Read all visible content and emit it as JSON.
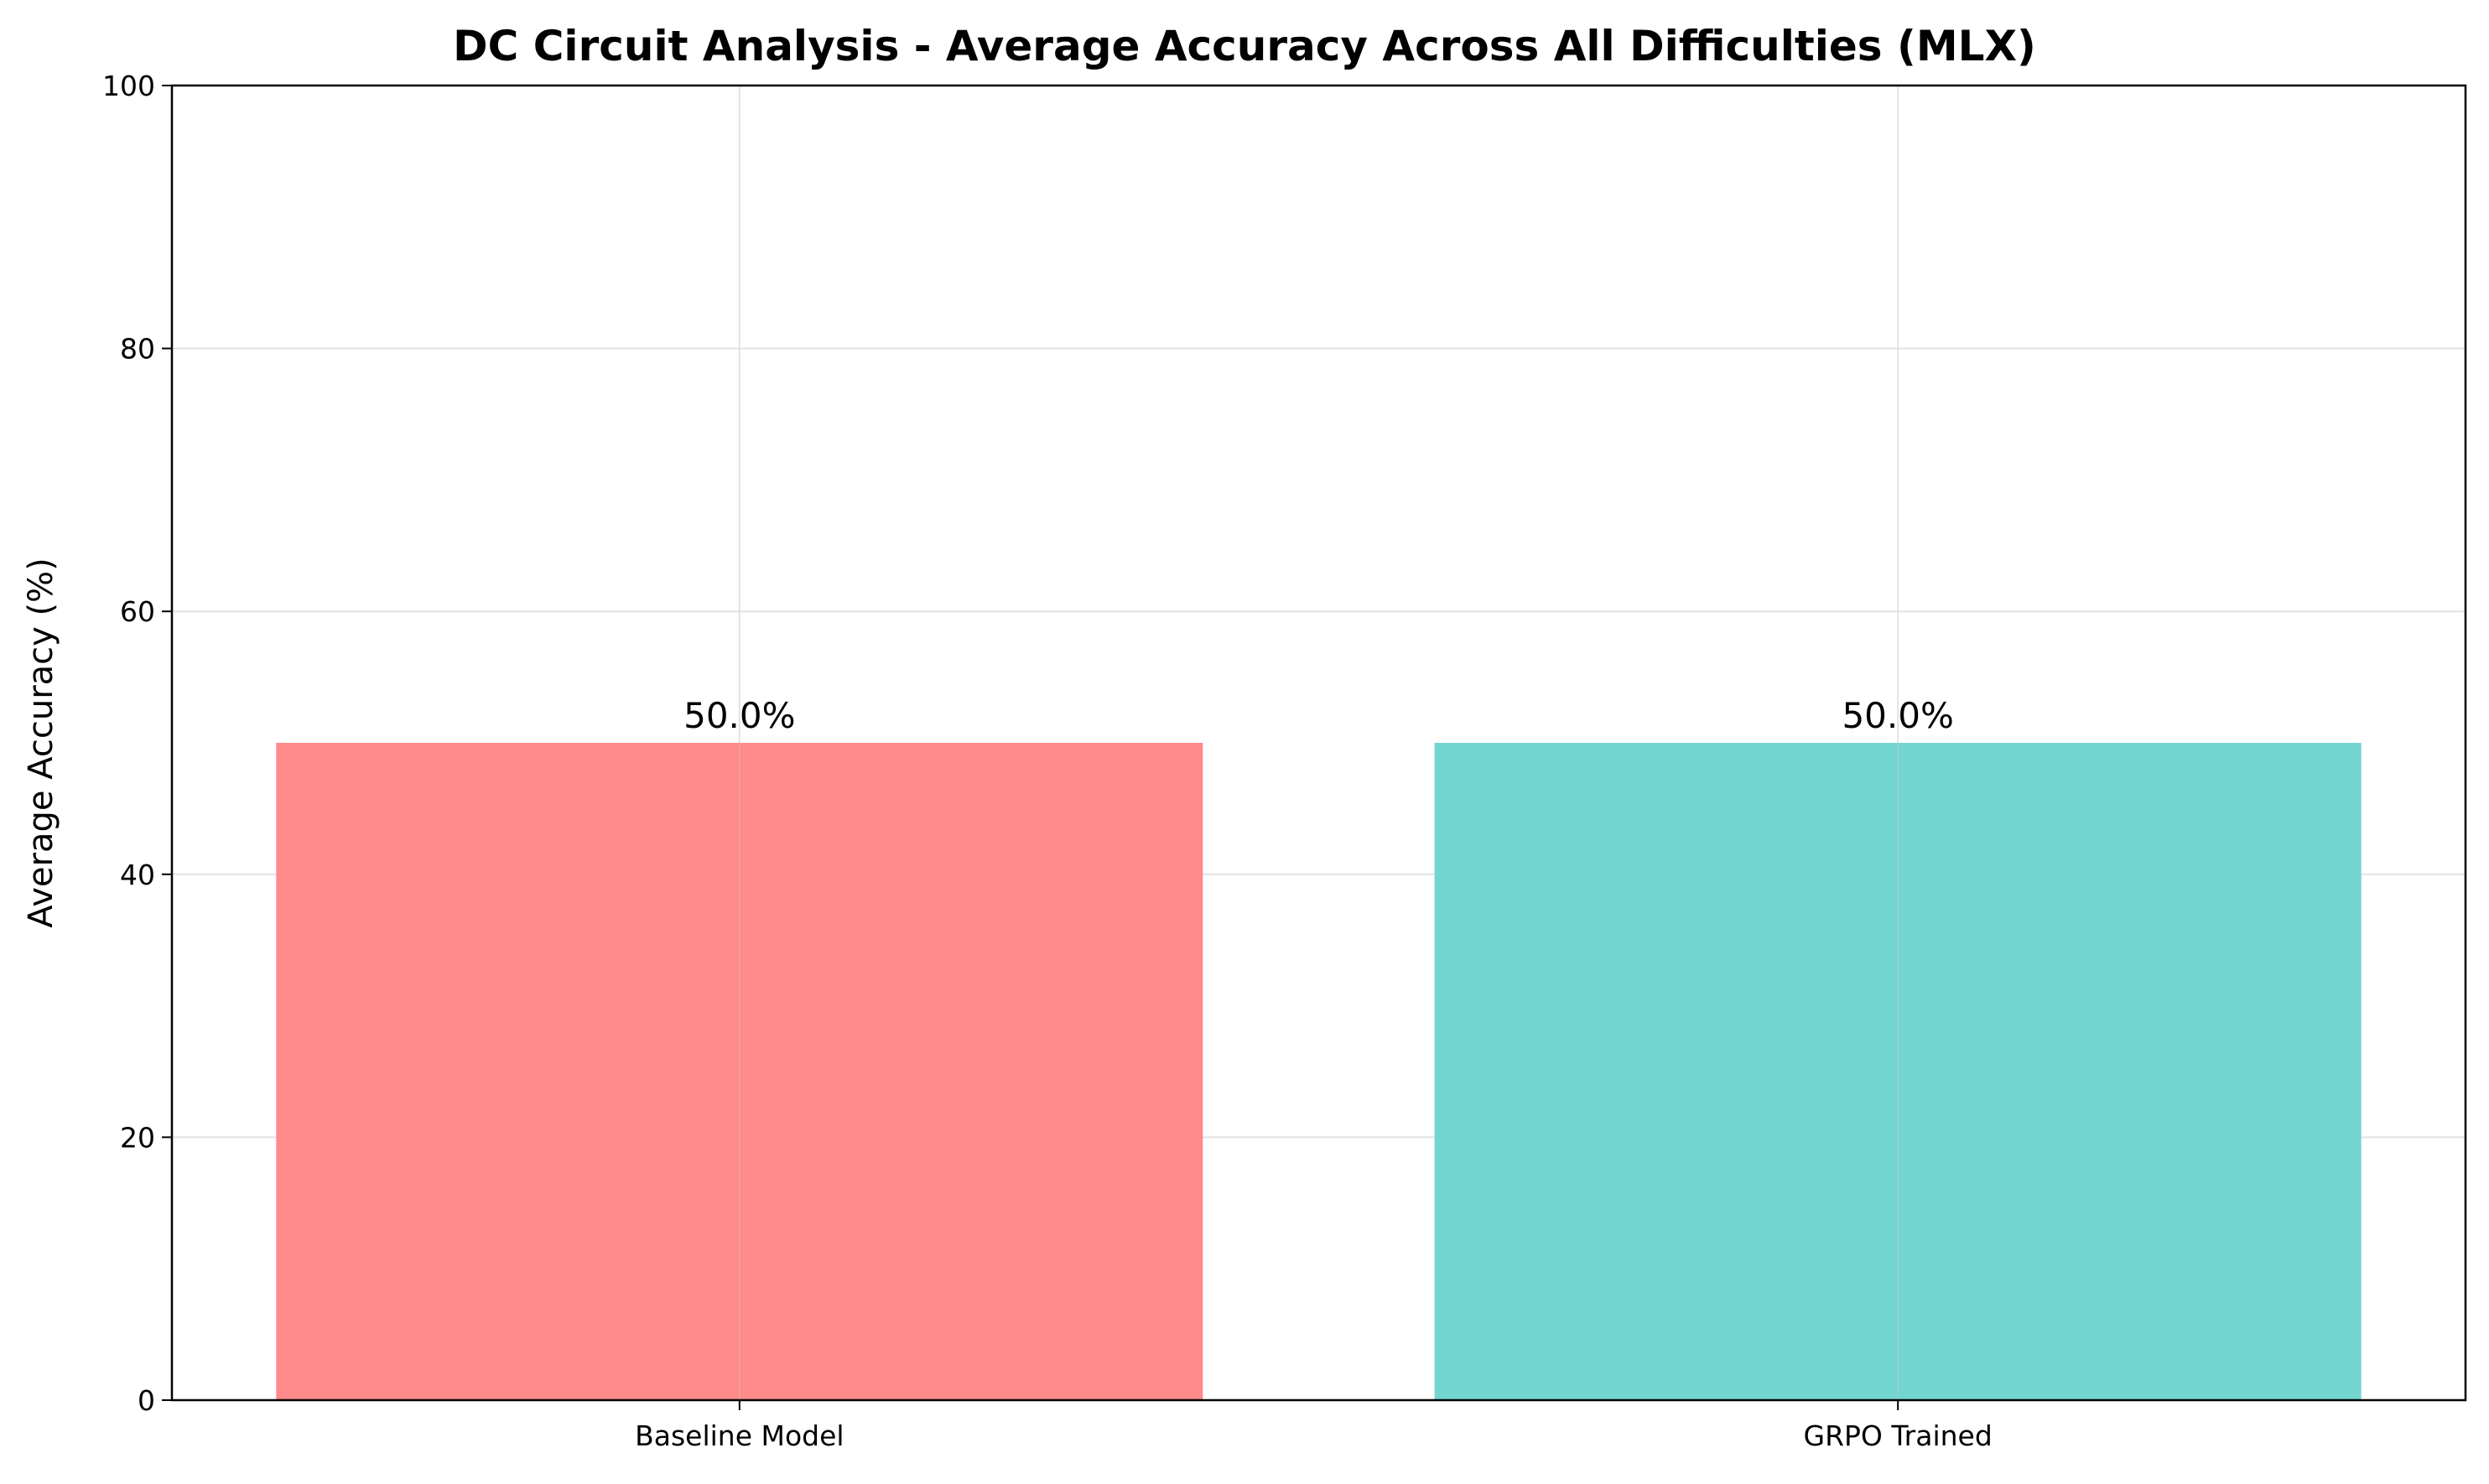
{
  "chart_data": {
    "type": "bar",
    "title": "DC Circuit Analysis - Average Accuracy Across All Difficulties (MLX)",
    "xlabel": "",
    "ylabel": "Average Accuracy (%)",
    "categories": [
      "Baseline Model",
      "GRPO Trained"
    ],
    "values": [
      50.0,
      50.0
    ],
    "value_labels": [
      "50.0%",
      "50.0%"
    ],
    "colors": [
      "#ff8a8a",
      "#73d5d0"
    ],
    "ylim": [
      0,
      100
    ],
    "yticks": [
      0,
      20,
      40,
      60,
      80,
      100
    ],
    "ytick_labels": [
      "0",
      "20",
      "40",
      "60",
      "80",
      "100"
    ],
    "grid": true,
    "legend": "none"
  }
}
